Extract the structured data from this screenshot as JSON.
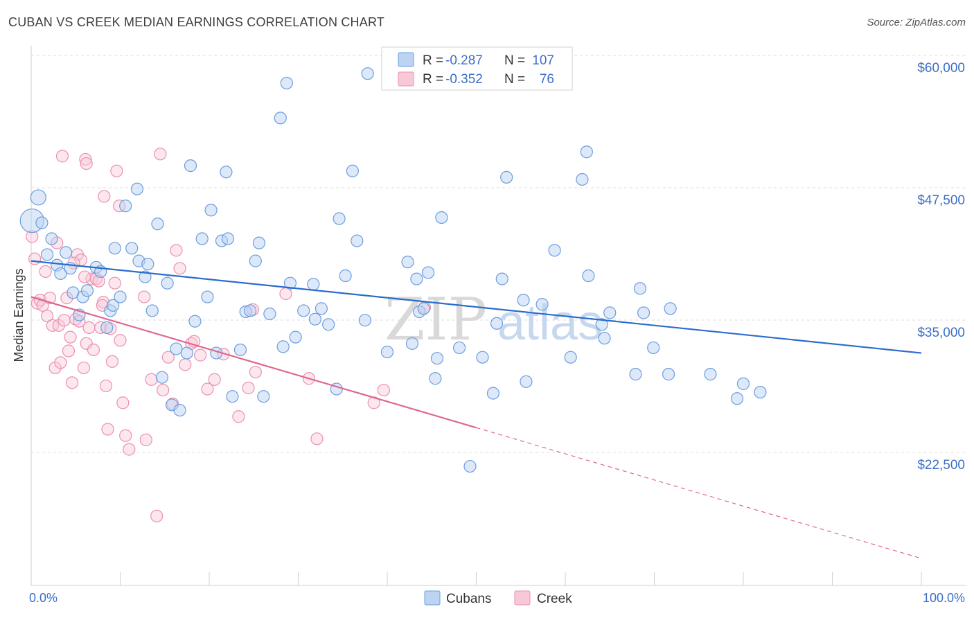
{
  "title": "CUBAN VS CREEK MEDIAN EARNINGS CORRELATION CHART",
  "source": "Source: ZipAtlas.com",
  "colors": {
    "cubans": "#6a9de0",
    "cubans_fill": "#bcd3f1",
    "cubans_line": "#2a6ccc",
    "creek": "#ec8fae",
    "creek_fill": "#f7c9d8",
    "creek_line": "#e0668f",
    "tick_text": "#3b6fc8"
  },
  "legend": {
    "r_label": "R =",
    "n_label": "N =",
    "cubans_r": "-0.287",
    "cubans_n": "107",
    "creek_r": "-0.352",
    "creek_n": "76"
  },
  "watermark": {
    "zip": "ZIP",
    "atlas": "atlas"
  },
  "chart_data": {
    "type": "scatter",
    "title": "CUBAN VS CREEK MEDIAN EARNINGS CORRELATION CHART",
    "xlabel": "",
    "ylabel": "Median Earnings",
    "x_tick_labels": [
      "0.0%",
      "100.0%"
    ],
    "y_tick_labels": [
      "$60,000",
      "$47,500",
      "$35,000",
      "$22,500"
    ],
    "y_ticks": [
      60000,
      47500,
      35000,
      22500
    ],
    "xlim": [
      0,
      100
    ],
    "ylim": [
      10500,
      61200
    ],
    "grid": true,
    "legend_position": "top-center",
    "series": [
      {
        "name": "Cubans",
        "r": -0.287,
        "n": 107,
        "trend": {
          "x": [
            0,
            100
          ],
          "y": [
            41700,
            33000
          ],
          "dashed_from": null
        },
        "points": [
          [
            0.1,
            45500
          ],
          [
            0.8,
            47700
          ],
          [
            1.2,
            45300
          ],
          [
            1.8,
            42300
          ],
          [
            2.3,
            43800
          ],
          [
            2.9,
            41300
          ],
          [
            3.3,
            40500
          ],
          [
            3.9,
            42500
          ],
          [
            4.4,
            41000
          ],
          [
            4.7,
            38700
          ],
          [
            5.4,
            36600
          ],
          [
            5.8,
            38300
          ],
          [
            6.3,
            38900
          ],
          [
            7.3,
            41100
          ],
          [
            7.8,
            40700
          ],
          [
            8.5,
            35400
          ],
          [
            8.9,
            37000
          ],
          [
            9.2,
            37500
          ],
          [
            9.4,
            42900
          ],
          [
            10.0,
            38300
          ],
          [
            10.6,
            46900
          ],
          [
            11.3,
            42900
          ],
          [
            11.9,
            48500
          ],
          [
            12.1,
            41700
          ],
          [
            12.8,
            40200
          ],
          [
            13.1,
            41400
          ],
          [
            13.6,
            37000
          ],
          [
            14.2,
            45200
          ],
          [
            14.7,
            30700
          ],
          [
            15.3,
            39600
          ],
          [
            15.8,
            28100
          ],
          [
            16.3,
            33400
          ],
          [
            16.7,
            27600
          ],
          [
            17.5,
            33000
          ],
          [
            17.9,
            50700
          ],
          [
            18.4,
            36000
          ],
          [
            19.2,
            43800
          ],
          [
            19.8,
            38300
          ],
          [
            20.2,
            46500
          ],
          [
            20.8,
            33000
          ],
          [
            21.4,
            43600
          ],
          [
            21.9,
            50100
          ],
          [
            22.1,
            43800
          ],
          [
            22.6,
            28900
          ],
          [
            23.5,
            33300
          ],
          [
            24.1,
            36900
          ],
          [
            24.6,
            37000
          ],
          [
            25.2,
            41700
          ],
          [
            25.6,
            43400
          ],
          [
            26.1,
            28900
          ],
          [
            26.8,
            36700
          ],
          [
            28.0,
            55200
          ],
          [
            28.3,
            33600
          ],
          [
            28.7,
            58500
          ],
          [
            29.1,
            39600
          ],
          [
            29.7,
            34500
          ],
          [
            30.6,
            37000
          ],
          [
            31.7,
            39500
          ],
          [
            31.9,
            36200
          ],
          [
            32.6,
            37200
          ],
          [
            33.4,
            35700
          ],
          [
            34.3,
            29600
          ],
          [
            34.6,
            45700
          ],
          [
            35.3,
            40300
          ],
          [
            36.1,
            50200
          ],
          [
            36.6,
            43600
          ],
          [
            37.5,
            36100
          ],
          [
            37.8,
            59400
          ],
          [
            40.0,
            33100
          ],
          [
            42.3,
            41600
          ],
          [
            42.8,
            33900
          ],
          [
            43.3,
            40000
          ],
          [
            43.6,
            36900
          ],
          [
            44.1,
            37200
          ],
          [
            44.6,
            40600
          ],
          [
            45.4,
            30600
          ],
          [
            45.6,
            32500
          ],
          [
            46.1,
            45800
          ],
          [
            48.1,
            33500
          ],
          [
            49.3,
            22300
          ],
          [
            50.7,
            32600
          ],
          [
            51.9,
            29200
          ],
          [
            52.3,
            35800
          ],
          [
            52.9,
            40000
          ],
          [
            53.4,
            49600
          ],
          [
            55.3,
            38000
          ],
          [
            55.6,
            30300
          ],
          [
            57.4,
            37600
          ],
          [
            58.8,
            42700
          ],
          [
            60.6,
            32600
          ],
          [
            61.9,
            49400
          ],
          [
            62.4,
            52000
          ],
          [
            62.6,
            40300
          ],
          [
            64.1,
            35700
          ],
          [
            64.4,
            34400
          ],
          [
            65.0,
            36800
          ],
          [
            67.9,
            31000
          ],
          [
            68.4,
            39100
          ],
          [
            68.8,
            36800
          ],
          [
            69.9,
            33500
          ],
          [
            71.6,
            31000
          ],
          [
            71.8,
            37200
          ],
          [
            76.3,
            31000
          ],
          [
            79.3,
            28700
          ],
          [
            80.0,
            30100
          ],
          [
            81.9,
            29300
          ]
        ],
        "point_sizes_note": "first two points are larger"
      },
      {
        "name": "Creek",
        "r": -0.352,
        "n": 76,
        "trend": {
          "x": [
            0,
            100
          ],
          "y": [
            38300,
            13600
          ],
          "solid_until_x": 50
        },
        "points": [
          [
            0.1,
            44000
          ],
          [
            0.4,
            41900
          ],
          [
            0.7,
            37700
          ],
          [
            1.0,
            38000
          ],
          [
            1.3,
            37500
          ],
          [
            1.6,
            40700
          ],
          [
            1.8,
            36500
          ],
          [
            2.1,
            38200
          ],
          [
            2.4,
            35600
          ],
          [
            2.7,
            31600
          ],
          [
            2.9,
            43400
          ],
          [
            3.1,
            35600
          ],
          [
            3.3,
            32100
          ],
          [
            3.7,
            36100
          ],
          [
            4.0,
            38200
          ],
          [
            4.2,
            33200
          ],
          [
            4.4,
            34500
          ],
          [
            4.6,
            30200
          ],
          [
            5.0,
            36200
          ],
          [
            5.2,
            42300
          ],
          [
            5.4,
            36000
          ],
          [
            5.6,
            41800
          ],
          [
            5.9,
            31600
          ],
          [
            6.2,
            33900
          ],
          [
            6.5,
            35400
          ],
          [
            6.8,
            40000
          ],
          [
            7.0,
            33300
          ],
          [
            7.3,
            40000
          ],
          [
            7.6,
            39800
          ],
          [
            7.8,
            35400
          ],
          [
            8.1,
            37800
          ],
          [
            8.4,
            29900
          ],
          [
            8.6,
            25800
          ],
          [
            8.9,
            35300
          ],
          [
            9.1,
            32200
          ],
          [
            9.4,
            39600
          ],
          [
            10.0,
            34200
          ],
          [
            10.3,
            28300
          ],
          [
            10.6,
            25200
          ],
          [
            11.0,
            23900
          ],
          [
            12.7,
            38300
          ],
          [
            12.9,
            24800
          ],
          [
            13.5,
            30500
          ],
          [
            14.1,
            17600
          ],
          [
            14.8,
            29500
          ],
          [
            15.4,
            32600
          ],
          [
            15.9,
            28200
          ],
          [
            16.3,
            42700
          ],
          [
            16.7,
            41000
          ],
          [
            17.3,
            31900
          ],
          [
            18.0,
            33900
          ],
          [
            18.3,
            34100
          ],
          [
            19.0,
            32800
          ],
          [
            19.8,
            29600
          ],
          [
            20.6,
            30500
          ],
          [
            21.6,
            32900
          ],
          [
            23.3,
            27000
          ],
          [
            24.4,
            29700
          ],
          [
            24.9,
            37100
          ],
          [
            25.2,
            31200
          ],
          [
            28.6,
            38600
          ],
          [
            31.2,
            30600
          ],
          [
            32.1,
            24900
          ],
          [
            38.5,
            28300
          ],
          [
            39.6,
            29500
          ],
          [
            44.2,
            37300
          ],
          [
            3.5,
            51600
          ],
          [
            6.1,
            51300
          ],
          [
            6.2,
            50900
          ],
          [
            9.6,
            50200
          ],
          [
            14.5,
            51800
          ],
          [
            8.2,
            47800
          ],
          [
            9.9,
            46900
          ],
          [
            6.0,
            40200
          ],
          [
            4.8,
            41500
          ],
          [
            8.0,
            37500
          ]
        ]
      }
    ]
  }
}
